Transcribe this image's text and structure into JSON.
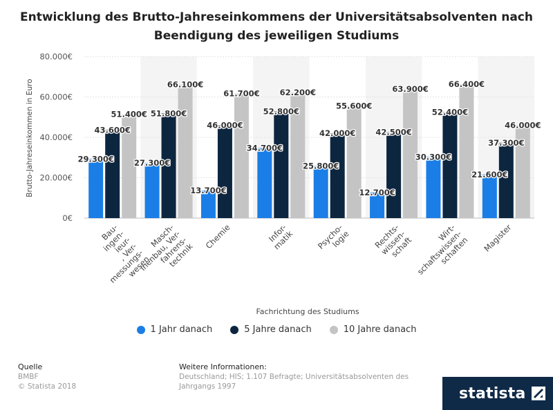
{
  "chart_data": {
    "type": "bar",
    "title": "Entwicklung des Brutto-Jahreseinkommens der Universitätsabsolventen nach Beendigung des jeweiligen Studiums",
    "title_lines": [
      "Entwicklung des Brutto-Jahreseinkommens der Universitätsabsolventen nach",
      "Beendigung des jeweiligen Studiums"
    ],
    "xlabel": "Fachrichtung des Studiums",
    "ylabel": "Brutto-Jahreseinkommen in Euro",
    "ylim": [
      0,
      80000
    ],
    "yticks": [
      {
        "value": 0,
        "label": "0€"
      },
      {
        "value": 20000,
        "label": "20.000€"
      },
      {
        "value": 40000,
        "label": "40.000€"
      },
      {
        "value": 60000,
        "label": "60.000€"
      },
      {
        "value": 80000,
        "label": "80.000€"
      }
    ],
    "categories": [
      [
        "Bau-",
        "ingen-",
        "ieur-",
        ", Ver-",
        "messungs-",
        "wesen"
      ],
      [
        "Masch-",
        "inenbau, Ver-",
        "fahrens-",
        "technik"
      ],
      [
        "Chemie"
      ],
      [
        "Infor-",
        "matik"
      ],
      [
        "Psycho-",
        "logie"
      ],
      [
        "Rechts-",
        "wissen-",
        "schaft"
      ],
      [
        "Wirt-",
        "schaftswissen-",
        "schaften"
      ],
      [
        "Magister"
      ]
    ],
    "series": [
      {
        "name": "1 Jahr danach",
        "color": "#1a7ee6",
        "values": [
          29300,
          27300,
          13700,
          34700,
          25800,
          12700,
          30300,
          21600
        ],
        "labels": [
          "29.300€",
          "27.300€",
          "13.700€",
          "34.700€",
          "25.800€",
          "12.700€",
          "30.300€",
          "21.600€"
        ]
      },
      {
        "name": "5 Jahre danach",
        "color": "#0d2640",
        "values": [
          43600,
          51800,
          46000,
          52800,
          42000,
          42500,
          52400,
          37300
        ],
        "labels": [
          "43.600€",
          "51.800€",
          "46.000€",
          "52.800€",
          "42.000€",
          "42.500€",
          "52.400€",
          "37.300€"
        ]
      },
      {
        "name": "10 Jahre danach",
        "color": "#c4c4c4",
        "values": [
          51400,
          66100,
          61700,
          62200,
          55600,
          63900,
          66400,
          46000
        ],
        "labels": [
          "51.400€",
          "66.100€",
          "61.700€",
          "62.200€",
          "55.600€",
          "63.900€",
          "66.400€",
          "46.000€"
        ]
      }
    ],
    "grid": true,
    "legend_position": "bottom"
  },
  "footer": {
    "source_heading": "Quelle",
    "source": "BMBF",
    "copyright": "© Statista 2018",
    "info_heading": "Weitere Informationen:",
    "info_lines": [
      "Deutschland; HIS; 1.107 Befragte; Universitätsabsolventen des",
      "Jahrgangs 1997"
    ]
  },
  "brand": {
    "logo_text": "statista",
    "bg_color": "#0f2a47"
  }
}
